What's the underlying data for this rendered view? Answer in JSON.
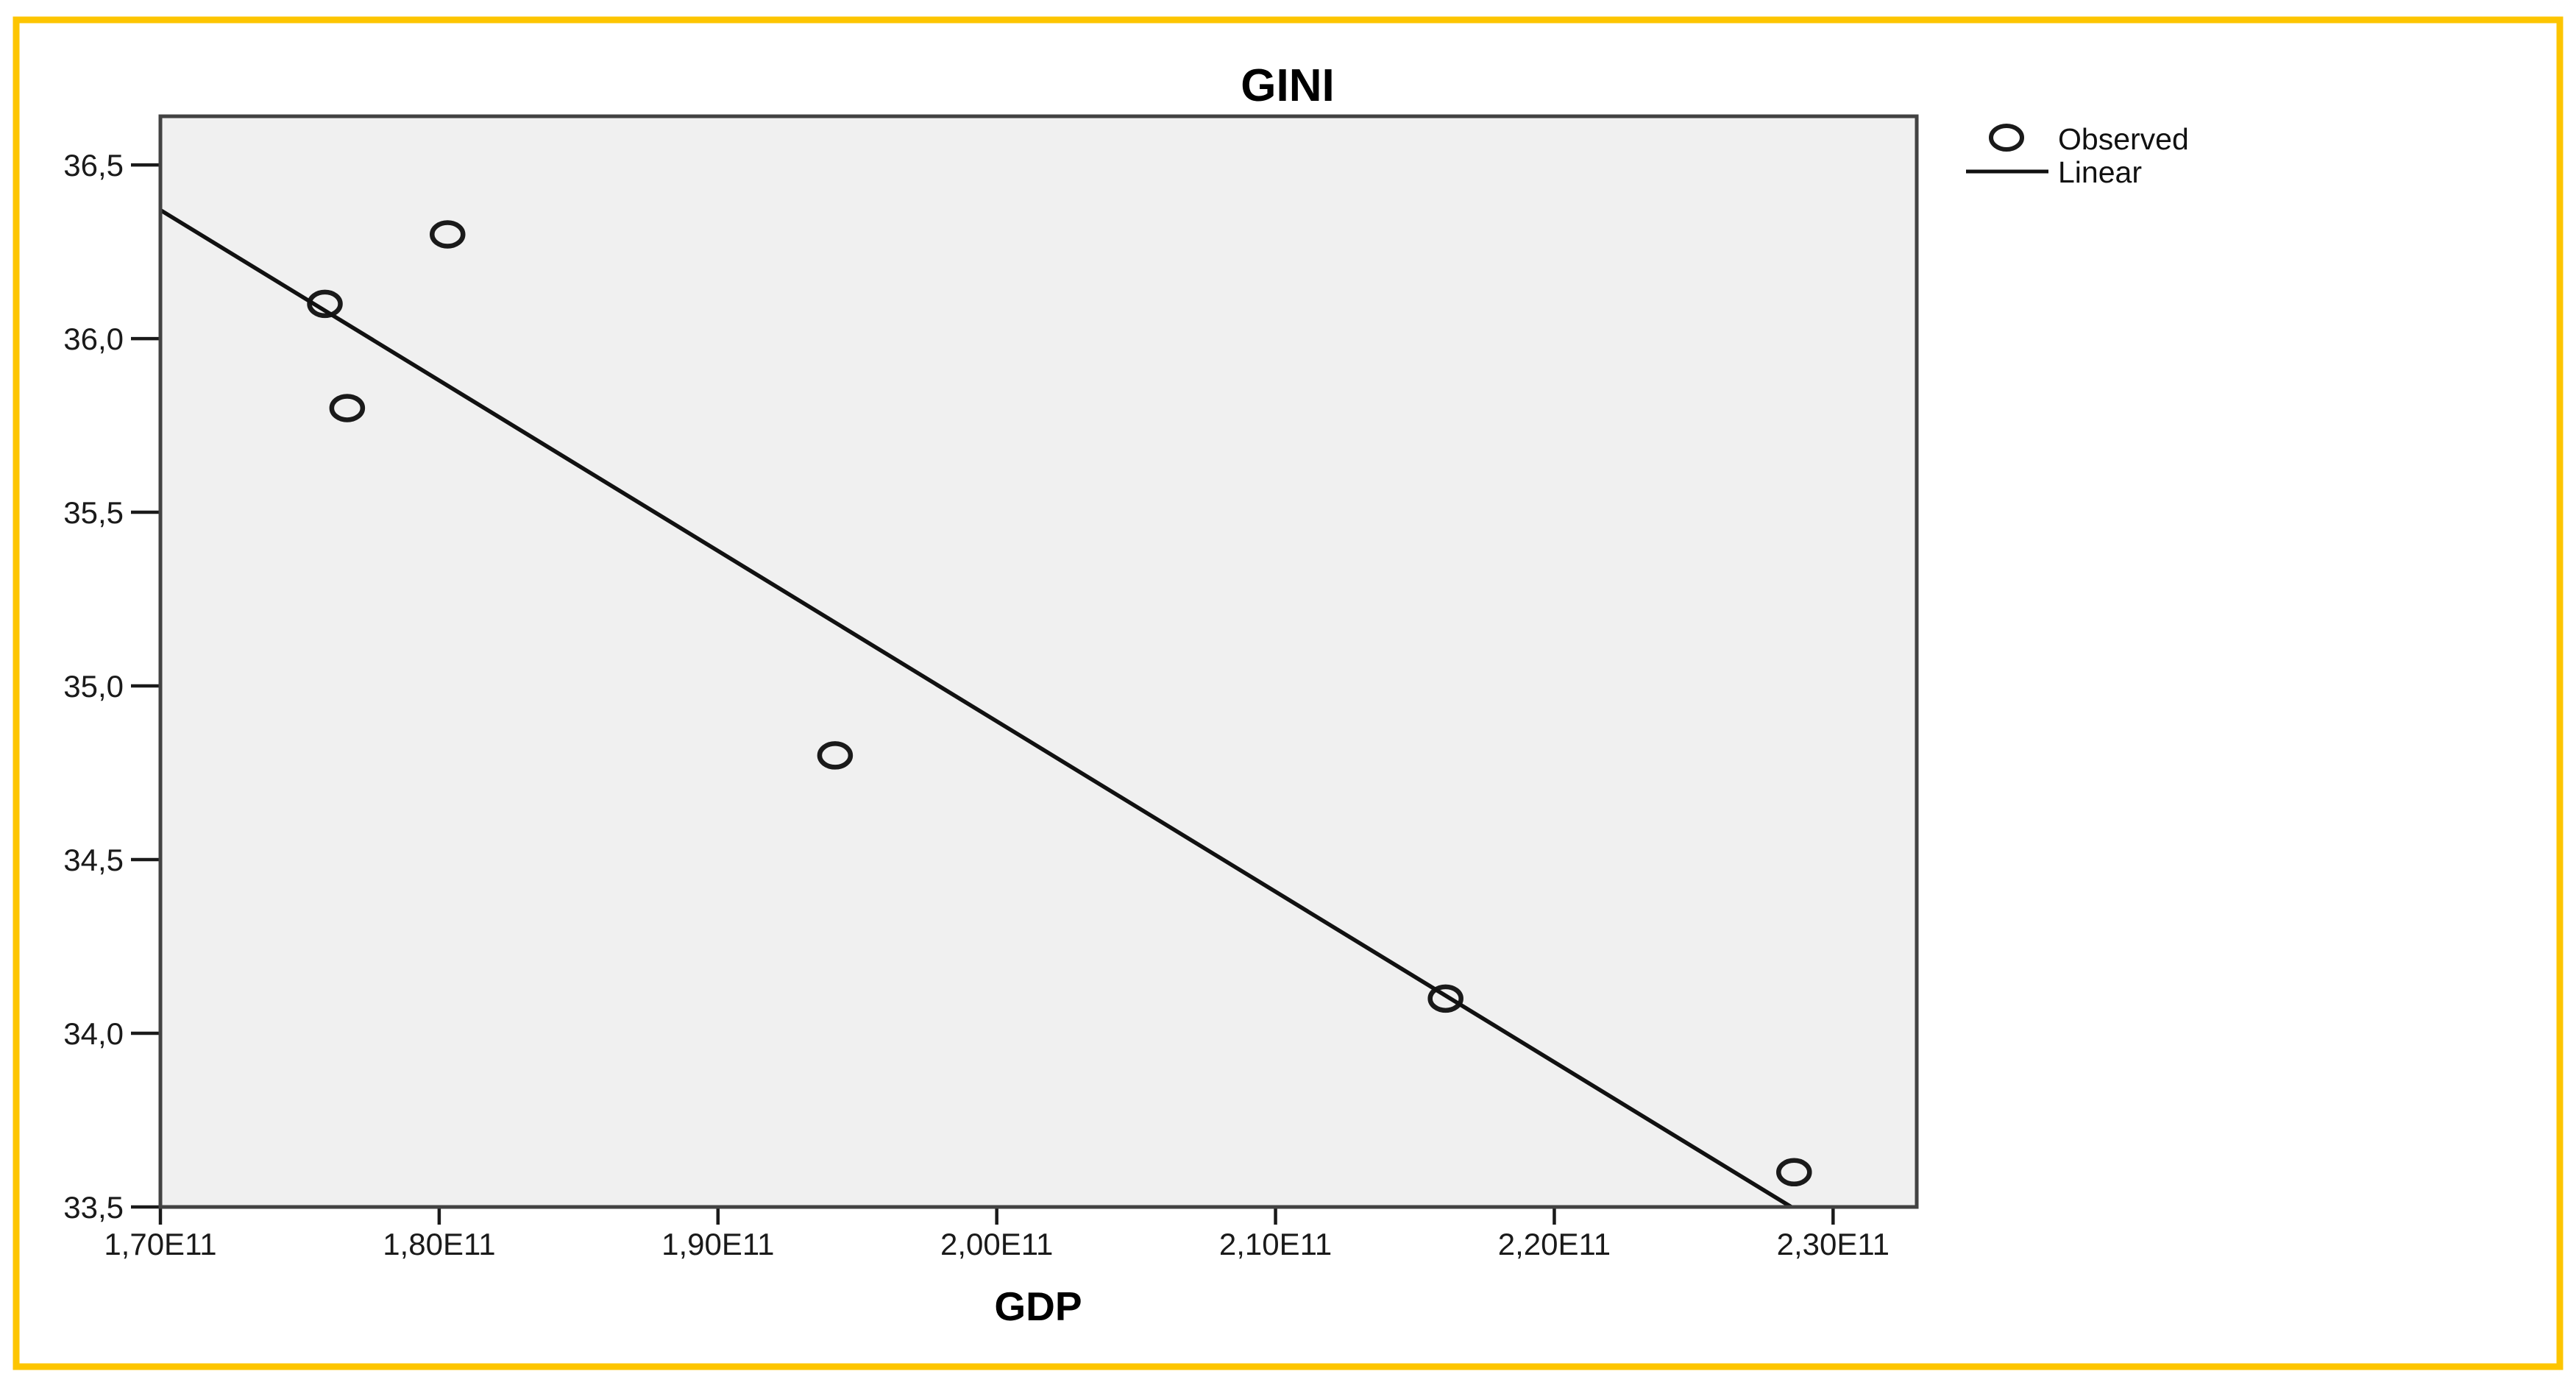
{
  "figure": {
    "background_color": "#FFFFFF",
    "border_color": "#FDC500",
    "plot_background_color": "#F0F0F0",
    "axis_color": "#424242",
    "marker_color": "#1A1A1A",
    "line_color": "#111111"
  },
  "chart_data": {
    "type": "scatter",
    "title": "GINI",
    "xlabel": "GDP",
    "ylabel": "",
    "grid": false,
    "legend_position": "top-right-outside",
    "xlim_e11": [
      1.7,
      2.33
    ],
    "ylim": [
      33.5,
      36.64
    ],
    "x_ticks": [
      {
        "value": 1.7,
        "label": "1,70E11"
      },
      {
        "value": 1.8,
        "label": "1,80E11"
      },
      {
        "value": 1.9,
        "label": "1,90E11"
      },
      {
        "value": 2.0,
        "label": "2,00E11"
      },
      {
        "value": 2.1,
        "label": "2,10E11"
      },
      {
        "value": 2.2,
        "label": "2,20E11"
      },
      {
        "value": 2.3,
        "label": "2,30E11"
      }
    ],
    "y_ticks": [
      {
        "value": 33.5,
        "label": "33,5"
      },
      {
        "value": 34.0,
        "label": "34,0"
      },
      {
        "value": 34.5,
        "label": "34,5"
      },
      {
        "value": 35.0,
        "label": "35,0"
      },
      {
        "value": 35.5,
        "label": "35,5"
      },
      {
        "value": 36.0,
        "label": "36,0"
      },
      {
        "value": 36.5,
        "label": "36,5"
      }
    ],
    "series": [
      {
        "name": "Observed",
        "kind": "points",
        "marker": "open-circle",
        "points": [
          {
            "gdp_e11": 1.759,
            "gini": 36.1
          },
          {
            "gdp_e11": 1.767,
            "gini": 35.8
          },
          {
            "gdp_e11": 1.803,
            "gini": 36.3
          },
          {
            "gdp_e11": 1.942,
            "gini": 34.8
          },
          {
            "gdp_e11": 2.161,
            "gini": 34.1
          },
          {
            "gdp_e11": 2.286,
            "gini": 33.6
          }
        ]
      },
      {
        "name": "Linear",
        "kind": "fit-line",
        "endpoints": [
          {
            "gdp_e11": 1.7,
            "gini": 36.37
          },
          {
            "gdp_e11": 2.285,
            "gini": 33.5
          }
        ]
      }
    ],
    "legend": [
      {
        "marker": "open-circle",
        "label": "Observed"
      },
      {
        "marker": "line",
        "label": "Linear"
      }
    ]
  }
}
